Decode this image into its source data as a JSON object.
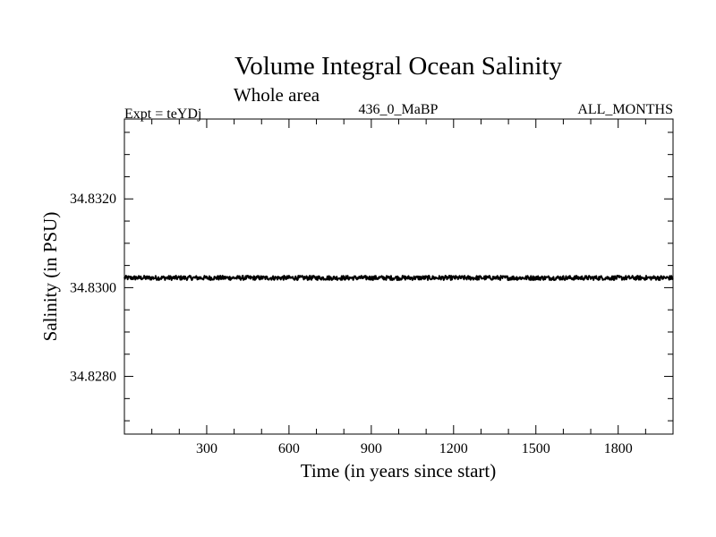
{
  "chart_data": {
    "type": "line",
    "title": "Volume Integral Ocean Salinity",
    "subtitle": "Whole area",
    "experiment": "Expt = teYDj",
    "run_label": "436_0_MaBP",
    "period_label": "ALL_MONTHS",
    "xlabel": "Time (in years since start)",
    "ylabel": "Salinity (in PSU)",
    "xlim": [
      0,
      2000
    ],
    "ylim": [
      34.8267,
      34.8338
    ],
    "x_major_ticks": [
      300,
      600,
      900,
      1200,
      1500,
      1800
    ],
    "x_tick_labels": [
      "300",
      "600",
      "900",
      "1200",
      "1500",
      "1800"
    ],
    "x_minor_step": 100,
    "y_major_ticks": [
      34.832,
      34.83,
      34.828
    ],
    "y_tick_labels": [
      "34.8320",
      "34.8300",
      "34.8280"
    ],
    "y_minor_step": 0.0005,
    "series": [
      {
        "name": "salinity",
        "mean": 34.83022,
        "noise_amplitude": 5e-05,
        "x_start": 0,
        "x_end": 2000,
        "x_step": 2,
        "color": "#000000"
      }
    ]
  }
}
